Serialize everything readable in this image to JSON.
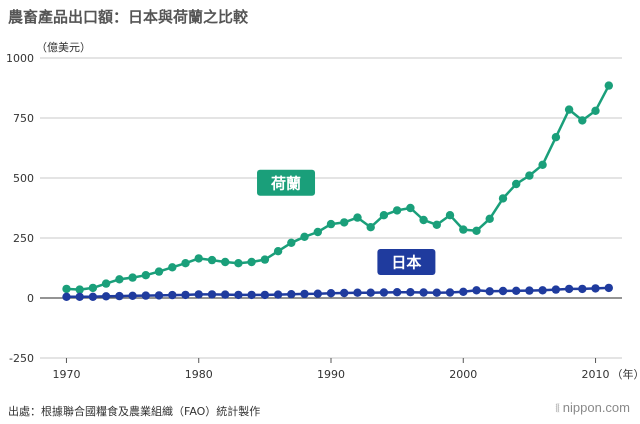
{
  "title": "農畜產品出口額：日本與荷蘭之比較",
  "source": "出處：根據聯合國糧食及農業組織（FAO）統計製作",
  "brand": "nippon.com",
  "chart_data": {
    "type": "line",
    "ylabel": "（億美元）",
    "xlabel": "（年）",
    "ylim": [
      -250,
      1000
    ],
    "yticks": [
      -250,
      0,
      250,
      500,
      750,
      1000
    ],
    "xlim": [
      1968,
      2012
    ],
    "xticks": [
      1970,
      1980,
      1990,
      2000,
      2010
    ],
    "grid": true,
    "series": [
      {
        "name": "荷蘭",
        "color": "#1a9f7a",
        "x": [
          1970,
          1971,
          1972,
          1973,
          1974,
          1975,
          1976,
          1977,
          1978,
          1979,
          1980,
          1981,
          1982,
          1983,
          1984,
          1985,
          1986,
          1987,
          1988,
          1989,
          1990,
          1991,
          1992,
          1993,
          1994,
          1995,
          1996,
          1997,
          1998,
          1999,
          2000,
          2001,
          2002,
          2003,
          2004,
          2005,
          2006,
          2007,
          2008,
          2009,
          2010,
          2011
        ],
        "values": [
          38,
          35,
          42,
          60,
          78,
          85,
          95,
          110,
          128,
          145,
          165,
          158,
          150,
          145,
          150,
          160,
          195,
          230,
          255,
          275,
          308,
          315,
          335,
          295,
          345,
          365,
          375,
          325,
          305,
          345,
          285,
          280,
          330,
          415,
          475,
          510,
          555,
          670,
          785,
          740,
          780,
          885
        ]
      },
      {
        "name": "日本",
        "color": "#1f3b9e",
        "x": [
          1970,
          1971,
          1972,
          1973,
          1974,
          1975,
          1976,
          1977,
          1978,
          1979,
          1980,
          1981,
          1982,
          1983,
          1984,
          1985,
          1986,
          1987,
          1988,
          1989,
          1990,
          1991,
          1992,
          1993,
          1994,
          1995,
          1996,
          1997,
          1998,
          1999,
          2000,
          2001,
          2002,
          2003,
          2004,
          2005,
          2006,
          2007,
          2008,
          2009,
          2010,
          2011
        ],
        "values": [
          5,
          5,
          5,
          7,
          8,
          9,
          10,
          11,
          12,
          13,
          15,
          15,
          14,
          13,
          13,
          13,
          14,
          16,
          17,
          18,
          20,
          21,
          22,
          22,
          23,
          24,
          24,
          23,
          22,
          23,
          26,
          32,
          28,
          29,
          30,
          31,
          32,
          35,
          38,
          38,
          40,
          42
        ]
      }
    ]
  }
}
